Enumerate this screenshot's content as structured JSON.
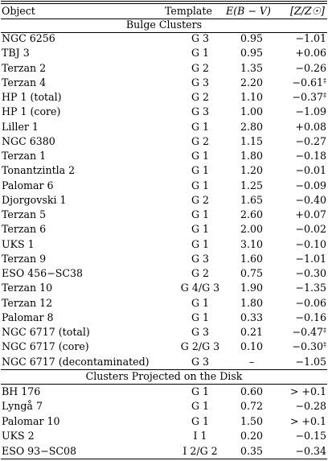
{
  "headers": {
    "object": "Object",
    "template": "Template",
    "ebv": "E(B − V)",
    "metal": "[Z/Z☉]"
  },
  "sections": {
    "bulge": "Bulge Clusters",
    "disk": "Clusters Projected on the Disk"
  },
  "bulge_rows": [
    {
      "object": "NGC 6256",
      "template": "G 3",
      "ebv": "0.95",
      "metal": "−1.01",
      "mark": ""
    },
    {
      "object": "TBJ 3",
      "template": "G 1",
      "ebv": "0.95",
      "metal": "+0.06",
      "mark": ""
    },
    {
      "object": "Terzan 2",
      "template": "G 2",
      "ebv": "1.35",
      "metal": "−0.26",
      "mark": ""
    },
    {
      "object": "Terzan 4",
      "template": "G 3",
      "ebv": "2.20",
      "metal": "−0.61",
      "mark": "‡"
    },
    {
      "object": "HP 1 (total)",
      "template": "G 2",
      "ebv": "1.10",
      "metal": "−0.37",
      "mark": "‡"
    },
    {
      "object": "HP 1 (core)",
      "template": "G 3",
      "ebv": "1.00",
      "metal": "−1.09",
      "mark": ""
    },
    {
      "object": "Liller 1",
      "template": "G 1",
      "ebv": "2.80",
      "metal": "+0.08",
      "mark": ""
    },
    {
      "object": "NGC 6380",
      "template": "G 2",
      "ebv": "1.15",
      "metal": "−0.27",
      "mark": ""
    },
    {
      "object": "Terzan 1",
      "template": "G 1",
      "ebv": "1.80",
      "metal": "−0.18",
      "mark": ""
    },
    {
      "object": "Tonantzintla 2",
      "template": "G 1",
      "ebv": "1.20",
      "metal": "−0.01",
      "mark": ""
    },
    {
      "object": "Palomar 6",
      "template": "G 1",
      "ebv": "1.25",
      "metal": "−0.09",
      "mark": ""
    },
    {
      "object": "Djorgovski 1",
      "template": "G 2",
      "ebv": "1.65",
      "metal": "−0.40",
      "mark": ""
    },
    {
      "object": "Terzan 5",
      "template": "G 1",
      "ebv": "2.60",
      "metal": "+0.07",
      "mark": ""
    },
    {
      "object": "Terzan 6",
      "template": "G 1",
      "ebv": "2.00",
      "metal": "−0.02",
      "mark": ""
    },
    {
      "object": "UKS 1",
      "template": "G 1",
      "ebv": "3.10",
      "metal": "−0.10",
      "mark": ""
    },
    {
      "object": "Terzan 9",
      "template": "G 3",
      "ebv": "1.60",
      "metal": "−1.01",
      "mark": ""
    },
    {
      "object": "ESO 456−SC38",
      "template": "G 2",
      "ebv": "0.75",
      "metal": "−0.30",
      "mark": ""
    },
    {
      "object": "Terzan 10",
      "template": "G 4/G 3",
      "ebv": "1.90",
      "metal": "−1.35",
      "mark": ""
    },
    {
      "object": "Terzan 12",
      "template": "G 1",
      "ebv": "1.80",
      "metal": "−0.06",
      "mark": ""
    },
    {
      "object": "Palomar 8",
      "template": "G 1",
      "ebv": "0.33",
      "metal": "−0.16",
      "mark": ""
    },
    {
      "object": "NGC 6717 (total)",
      "template": "G 3",
      "ebv": "0.21",
      "metal": "−0.47",
      "mark": "‡"
    },
    {
      "object": "NGC 6717 (core)",
      "template": "G 2/G 3",
      "ebv": "0.10",
      "metal": "−0.30",
      "mark": "‡"
    },
    {
      "object": "NGC 6717 (decontaminated)",
      "template": "G 3",
      "ebv": "–",
      "metal": "−1.05",
      "mark": ""
    }
  ],
  "disk_rows": [
    {
      "object": "BH 176",
      "template": "G 1",
      "ebv": "0.60",
      "metal": "> +0.1",
      "mark": ""
    },
    {
      "object": "Lyngå 7",
      "template": "G 1",
      "ebv": "0.72",
      "metal": "−0.28",
      "mark": ""
    },
    {
      "object": "Palomar 10",
      "template": "G 1",
      "ebv": "1.50",
      "metal": "> +0.1",
      "mark": ""
    },
    {
      "object": "UKS 2",
      "template": "I 1",
      "ebv": "0.20",
      "metal": "−0.15",
      "mark": ""
    },
    {
      "object": "ESO 93−SC08",
      "template": "I 2/G 2",
      "ebv": "0.35",
      "metal": "−0.34",
      "mark": ""
    }
  ]
}
